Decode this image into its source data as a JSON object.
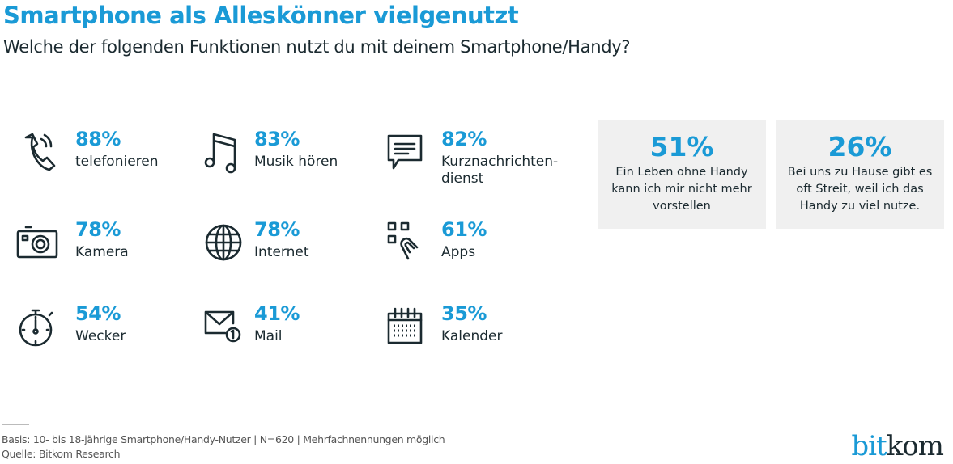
{
  "header": {
    "title": "Smartphone als Alleskönner vielgenutzt",
    "subtitle": "Welche der folgenden Funktionen nutzt du mit deinem Smartphone/Handy?"
  },
  "colors": {
    "accent": "#1a9ad6",
    "text": "#1b2a30",
    "box_bg": "#f0f0f0"
  },
  "chart_data": {
    "type": "table",
    "unit": "%",
    "items": [
      {
        "label": "telefonieren",
        "value": 88,
        "display": "88%",
        "icon": "phone-icon"
      },
      {
        "label": "Musik hören",
        "value": 83,
        "display": "83%",
        "icon": "music-note-icon"
      },
      {
        "label": "Kurznachrichten-dienst",
        "value": 82,
        "display": "82%",
        "icon": "chat-bubble-icon"
      },
      {
        "label": "Kamera",
        "value": 78,
        "display": "78%",
        "icon": "camera-icon"
      },
      {
        "label": "Internet",
        "value": 78,
        "display": "78%",
        "icon": "globe-icon"
      },
      {
        "label": "Apps",
        "value": 61,
        "display": "61%",
        "icon": "apps-touch-icon"
      },
      {
        "label": "Wecker",
        "value": 54,
        "display": "54%",
        "icon": "stopwatch-icon"
      },
      {
        "label": "Mail",
        "value": 41,
        "display": "41%",
        "icon": "mail-icon"
      },
      {
        "label": "Kalender",
        "value": 35,
        "display": "35%",
        "icon": "calendar-icon"
      }
    ],
    "highlights": [
      {
        "value": 51,
        "display": "51%",
        "text": "Ein Leben ohne Handy kann ich mir nicht mehr vorstellen"
      },
      {
        "value": 26,
        "display": "26%",
        "text": "Bei uns zu Hause gibt es oft Streit, weil ich das Handy zu viel nutze."
      }
    ]
  },
  "footer": {
    "basis": "Basis: 10- bis 18-jährige Smartphone/Handy-Nutzer | N=620 | Mehrfachnennungen möglich",
    "source": "Quelle: Bitkom Research",
    "logo": "bitkom",
    "logo_parts": [
      "bit",
      "kom"
    ]
  }
}
